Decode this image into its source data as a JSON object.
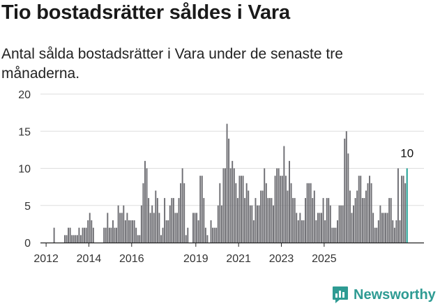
{
  "title": "Tio bostadsrätter såldes i Vara",
  "subtitle": "Antal sålda bostadsrätter i Vara under de senaste tre månaderna.",
  "brand": {
    "name": "Newsworthy",
    "icon": "newsworthy-logo-icon"
  },
  "colors": {
    "bar": "#6e6e73",
    "highlight": "#1a9e92",
    "grid": "#dddddd",
    "axis": "#222222",
    "brand": "#2e9b93"
  },
  "chart_data": {
    "type": "bar",
    "title": "Tio bostadsrätter såldes i Vara",
    "xlabel": "",
    "ylabel": "",
    "ylim": [
      0,
      20
    ],
    "yticks": [
      0,
      5,
      10,
      15,
      20
    ],
    "xticks": [
      "2012",
      "2014",
      "2016",
      "2019",
      "2021",
      "2023",
      "2025"
    ],
    "grid": true,
    "legend": "none",
    "annotation": {
      "label": "10",
      "target": "last"
    },
    "x_start": "2011-11",
    "values": [
      0,
      0,
      0,
      0,
      0,
      0,
      2,
      0,
      0,
      0,
      0,
      0,
      1,
      1,
      2,
      2,
      1,
      1,
      1,
      1,
      2,
      1,
      2,
      2,
      2,
      3,
      4,
      3,
      2,
      0,
      0,
      0,
      0,
      0,
      2,
      2,
      4,
      2,
      2,
      3,
      2,
      2,
      5,
      4,
      4,
      5,
      3,
      4,
      3,
      3,
      3,
      3,
      2,
      1,
      1,
      5,
      8,
      11,
      10,
      6,
      4,
      5,
      4,
      7,
      6,
      4,
      1,
      2,
      6,
      3,
      3,
      5,
      6,
      6,
      4,
      4,
      6,
      8,
      10,
      8,
      1,
      2,
      0,
      0,
      4,
      4,
      4,
      3,
      9,
      9,
      6,
      2,
      1,
      0,
      3,
      2,
      2,
      2,
      5,
      8,
      5,
      10,
      10,
      16,
      14,
      10,
      11,
      10,
      8,
      6,
      9,
      9,
      9,
      6,
      8,
      7,
      5,
      5,
      3,
      6,
      5,
      5,
      7,
      7,
      10,
      8,
      6,
      6,
      6,
      5,
      9,
      10,
      10,
      9,
      9,
      13,
      9,
      7,
      11,
      8,
      6,
      6,
      4,
      3,
      4,
      3,
      3,
      6,
      8,
      8,
      8,
      6,
      7,
      3,
      4,
      4,
      4,
      6,
      3,
      6,
      6,
      5,
      2,
      2,
      2,
      3,
      5,
      5,
      5,
      14,
      15,
      12,
      7,
      4,
      5,
      6,
      7,
      9,
      9,
      6,
      6,
      7,
      8,
      9,
      8,
      4,
      2,
      2,
      3,
      5,
      4,
      4,
      4,
      4,
      6,
      6,
      3,
      2,
      3,
      10,
      3,
      9,
      9,
      8,
      10
    ]
  }
}
